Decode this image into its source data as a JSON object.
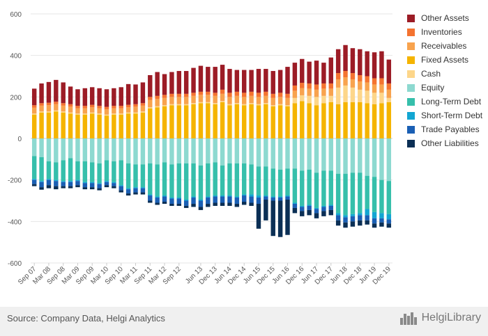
{
  "chart_data": {
    "type": "bar",
    "stacked": true,
    "ylim": [
      -600,
      600
    ],
    "y_ticks": [
      600,
      400,
      200,
      0,
      -200,
      -400,
      -600
    ],
    "grid": true,
    "legend_position": "right",
    "x_tick_labels": [
      "Sep 07",
      "Mar 08",
      "Sep 08",
      "Mar 09",
      "Sep 09",
      "Mar 10",
      "Sep 10",
      "Mar 11",
      "Sep 11",
      "Mar 12",
      "Sep 12",
      "Jun 13",
      "Dec 13",
      "Jun 14",
      "Dec 14",
      "Jun 15",
      "Dec 15",
      "Jun 16",
      "Dec 16",
      "Jun 17",
      "Dec 17",
      "Jun 18",
      "Dec 18",
      "Jun 19",
      "Dec 19"
    ],
    "x_tick_label_indices": [
      0,
      2,
      4,
      6,
      8,
      10,
      12,
      14,
      16,
      18,
      20,
      23,
      25,
      27,
      29,
      31,
      33,
      35,
      37,
      39,
      41,
      43,
      45,
      47,
      49
    ],
    "asset_series": [
      {
        "name": "Fixed Assets",
        "color": "#f5b400",
        "values": [
          115,
          125,
          125,
          130,
          125,
          120,
          115,
          115,
          120,
          115,
          110,
          115,
          115,
          120,
          120,
          125,
          145,
          150,
          155,
          160,
          160,
          160,
          165,
          170,
          170,
          165,
          175,
          160,
          165,
          160,
          165,
          160,
          165,
          155,
          160,
          155,
          170,
          180,
          170,
          160,
          170,
          175,
          165,
          175,
          175,
          175,
          170,
          165,
          170,
          175
        ]
      },
      {
        "name": "Cash",
        "color": "#fdd68a",
        "values": [
          5,
          5,
          5,
          5,
          5,
          5,
          5,
          5,
          5,
          5,
          5,
          5,
          5,
          5,
          5,
          5,
          5,
          5,
          5,
          5,
          5,
          5,
          5,
          5,
          5,
          5,
          5,
          5,
          5,
          5,
          5,
          5,
          5,
          5,
          5,
          5,
          25,
          28,
          35,
          40,
          35,
          30,
          80,
          80,
          70,
          60,
          60,
          55,
          50,
          20
        ]
      },
      {
        "name": "Receivables",
        "color": "#f8a34e",
        "values": [
          28,
          28,
          30,
          30,
          28,
          28,
          25,
          25,
          25,
          25,
          25,
          25,
          25,
          25,
          28,
          28,
          35,
          35,
          35,
          35,
          35,
          35,
          35,
          35,
          35,
          35,
          35,
          35,
          35,
          35,
          35,
          35,
          35,
          35,
          35,
          35,
          35,
          35,
          35,
          35,
          35,
          35,
          40,
          40,
          40,
          40,
          40,
          40,
          40,
          40
        ]
      },
      {
        "name": "Inventories",
        "color": "#f47330",
        "values": [
          12,
          12,
          12,
          12,
          12,
          12,
          12,
          12,
          12,
          12,
          12,
          12,
          12,
          12,
          12,
          12,
          15,
          15,
          15,
          15,
          15,
          15,
          15,
          15,
          15,
          15,
          20,
          20,
          20,
          20,
          20,
          20,
          20,
          20,
          20,
          20,
          25,
          25,
          25,
          25,
          25,
          25,
          30,
          30,
          30,
          30,
          30,
          30,
          30,
          30
        ]
      },
      {
        "name": "Other Assets",
        "color": "#9c1c26",
        "values": [
          80,
          95,
          100,
          105,
          100,
          85,
          80,
          85,
          85,
          85,
          85,
          85,
          90,
          100,
          95,
          100,
          105,
          115,
          100,
          105,
          110,
          110,
          120,
          125,
          120,
          125,
          120,
          115,
          105,
          110,
          105,
          115,
          110,
          110,
          110,
          130,
          110,
          115,
          105,
          115,
          100,
          125,
          115,
          125,
          120,
          125,
          120,
          125,
          130,
          115
        ]
      }
    ],
    "liability_series": [
      {
        "name": "Equity",
        "color": "#8dd9d0",
        "values": [
          85,
          90,
          110,
          115,
          105,
          95,
          110,
          110,
          115,
          120,
          105,
          110,
          105,
          120,
          125,
          125,
          120,
          125,
          115,
          125,
          120,
          120,
          120,
          130,
          120,
          115,
          130,
          120,
          120,
          120,
          125,
          135,
          135,
          145,
          150,
          145,
          145,
          155,
          150,
          165,
          155,
          155,
          170,
          170,
          165,
          165,
          180,
          185,
          200,
          205
        ]
      },
      {
        "name": "Long-Term Debt",
        "color": "#36bfab",
        "values": [
          110,
          115,
          85,
          85,
          100,
          110,
          90,
          100,
          95,
          95,
          100,
          100,
          120,
          120,
          110,
          110,
          150,
          155,
          160,
          160,
          165,
          175,
          160,
          165,
          160,
          160,
          145,
          155,
          160,
          150,
          145,
          140,
          140,
          135,
          130,
          130,
          165,
          170,
          170,
          170,
          170,
          165,
          190,
          200,
          200,
          195,
          160,
          170,
          160,
          160
        ]
      },
      {
        "name": "Short-Term Debt",
        "color": "#13a6d2",
        "values": [
          5,
          5,
          5,
          5,
          5,
          5,
          5,
          5,
          5,
          5,
          5,
          5,
          5,
          5,
          5,
          5,
          5,
          5,
          5,
          5,
          5,
          5,
          5,
          5,
          5,
          5,
          5,
          5,
          5,
          5,
          10,
          10,
          5,
          5,
          5,
          5,
          5,
          5,
          5,
          5,
          5,
          5,
          10,
          10,
          10,
          10,
          30,
          30,
          25,
          25
        ]
      },
      {
        "name": "Trade Payables",
        "color": "#1a5fb4",
        "values": [
          20,
          25,
          25,
          25,
          20,
          20,
          20,
          20,
          20,
          20,
          15,
          15,
          20,
          20,
          20,
          20,
          25,
          25,
          25,
          25,
          25,
          25,
          30,
          30,
          30,
          30,
          30,
          30,
          30,
          30,
          30,
          30,
          15,
          15,
          15,
          15,
          20,
          20,
          20,
          20,
          20,
          20,
          25,
          25,
          25,
          25,
          25,
          25,
          20,
          20
        ]
      },
      {
        "name": "Other Liabilities",
        "color": "#0b2f55",
        "values": [
          10,
          12,
          15,
          15,
          10,
          10,
          10,
          10,
          10,
          10,
          10,
          10,
          10,
          10,
          10,
          10,
          10,
          10,
          10,
          10,
          10,
          10,
          15,
          15,
          15,
          15,
          15,
          15,
          15,
          15,
          15,
          120,
          100,
          170,
          175,
          170,
          25,
          25,
          25,
          25,
          25,
          25,
          25,
          25,
          25,
          25,
          20,
          20,
          20,
          20
        ]
      }
    ],
    "legend_order": [
      "Other Assets",
      "Inventories",
      "Receivables",
      "Fixed Assets",
      "Cash",
      "Equity",
      "Long-Term Debt",
      "Short-Term Debt",
      "Trade Payables",
      "Other Liabilities"
    ],
    "colors": {
      "grid": "#e6e6e6",
      "zero_line": "#cccccc",
      "axis_text": "#555555"
    }
  },
  "footer": {
    "source": "Source: Company Data, Helgi Analytics",
    "brand": "HelgiLibrary"
  }
}
